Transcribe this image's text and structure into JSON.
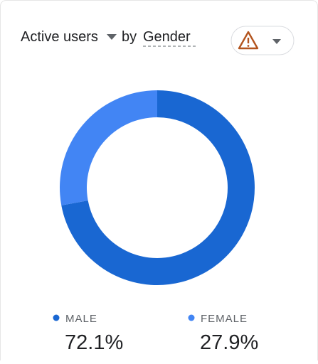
{
  "chart_data": {
    "type": "donut",
    "title": {
      "metric": "Active users",
      "connector": "by",
      "dimension": "Gender"
    },
    "categories": [
      "MALE",
      "FEMALE"
    ],
    "values": [
      72.1,
      27.9
    ],
    "value_labels": [
      "72.1%",
      "27.9%"
    ],
    "colors": [
      "#1967d2",
      "#4285f4"
    ]
  }
}
